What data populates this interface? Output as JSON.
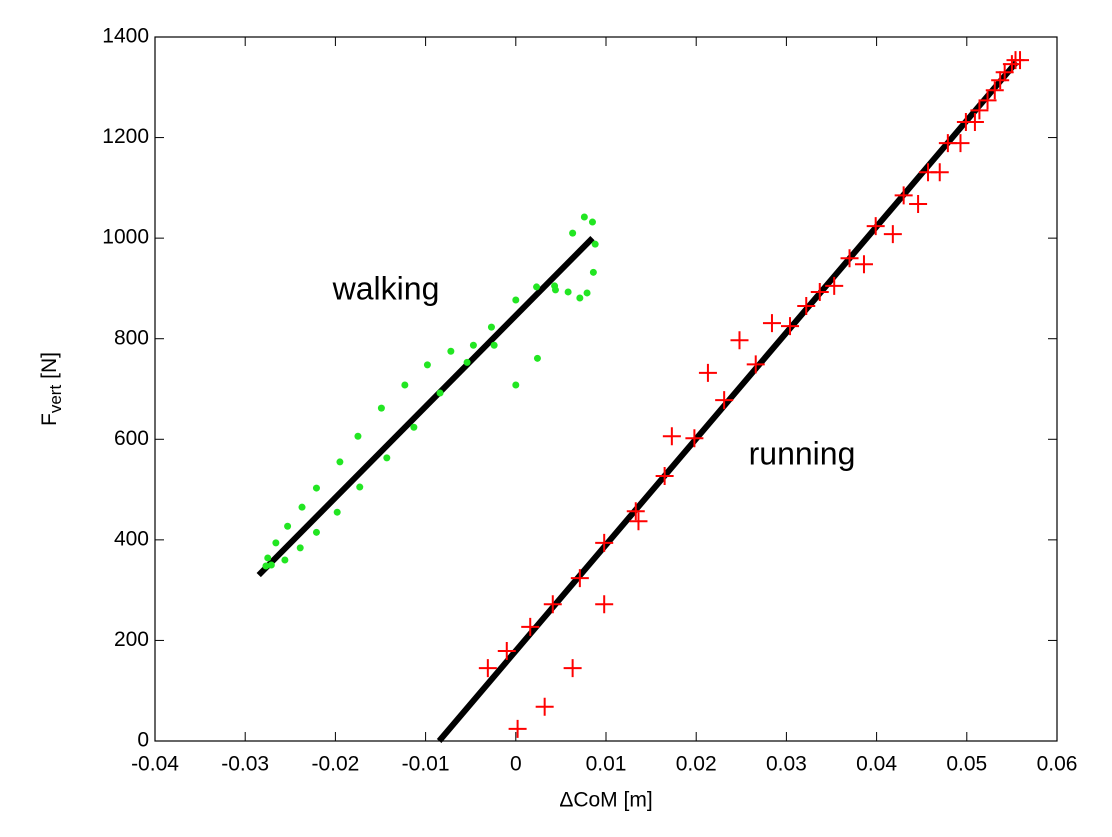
{
  "chart_data": {
    "type": "scatter",
    "xlabel": "ΔCoM [m]",
    "ylabel": "F",
    "ylabel_subscript": "vert",
    "ylabel_unit": "[N]",
    "annotations": [
      "walking",
      "running"
    ],
    "xlim": [
      -0.04,
      0.06
    ],
    "xticks": [
      -0.04,
      -0.03,
      -0.02,
      -0.01,
      0,
      0.01,
      0.02,
      0.03,
      0.04,
      0.05,
      0.06
    ],
    "ylim": [
      0,
      1400
    ],
    "yticks": [
      0,
      200,
      400,
      600,
      800,
      1000,
      1200,
      1400
    ],
    "series": [
      {
        "color": "#000000",
        "mode": "line",
        "x": [
          -0.0285,
          0.0085
        ],
        "values": [
          330,
          1000
        ]
      },
      {
        "color": "#000000",
        "mode": "line",
        "x": [
          -0.0085,
          0.0555
        ],
        "values": [
          0,
          1350
        ]
      },
      {
        "color": "#22e622",
        "mode": "dot",
        "x": [
          -0.0275,
          -0.0271,
          -0.0266,
          -0.0277,
          -0.0256,
          -0.0253,
          -0.0239,
          -0.0237,
          -0.0221,
          -0.0221,
          -0.0198,
          -0.0195,
          -0.0173,
          -0.0175,
          -0.0143,
          -0.0149,
          -0.0123,
          -0.0113,
          -0.0098,
          -0.0084,
          -0.0072,
          -0.0054,
          -0.0047,
          -0.0027,
          -0.0024,
          0,
          0,
          0.0023,
          0.0024,
          0.0043,
          0.0044,
          0.0058,
          0.0063,
          0.0071,
          0.0076,
          0.0079,
          0.0085,
          0.0086,
          0.0088
        ],
        "values": [
          364,
          350,
          394,
          348,
          360,
          427,
          384,
          465,
          503,
          415,
          455,
          555,
          505,
          606,
          563,
          662,
          708,
          624,
          748,
          692,
          775,
          753,
          787,
          823,
          787,
          877,
          708,
          903,
          761,
          905,
          897,
          893,
          1010,
          881,
          1042,
          891,
          1032,
          932,
          988
        ]
      },
      {
        "color": "#ff0000",
        "mode": "plus",
        "x": [
          0.0002,
          -0.0031,
          -0.001,
          0.0016,
          0.0032,
          0.0041,
          0.0063,
          0.0071,
          0.0098,
          0.0098,
          0.0133,
          0.0136,
          0.0165,
          0.0173,
          0.0198,
          0.0213,
          0.0231,
          0.0248,
          0.0266,
          0.0284,
          0.0304,
          0.0322,
          0.0337,
          0.0353,
          0.037,
          0.0386,
          0.0399,
          0.0418,
          0.043,
          0.0446,
          0.0457,
          0.047,
          0.0479,
          0.0493,
          0.0499,
          0.0509,
          0.0514,
          0.0523,
          0.0531,
          0.0537,
          0.0542,
          0.055,
          0.0554,
          0.0559
        ],
        "values": [
          24,
          145,
          179,
          227,
          68,
          272,
          145,
          324,
          272,
          394,
          457,
          437,
          527,
          606,
          602,
          732,
          678,
          797,
          749,
          831,
          825,
          865,
          893,
          905,
          960,
          948,
          1024,
          1008,
          1085,
          1068,
          1131,
          1131,
          1189,
          1189,
          1231,
          1231,
          1254,
          1274,
          1294,
          1314,
          1330,
          1346,
          1354,
          1354
        ]
      }
    ]
  }
}
